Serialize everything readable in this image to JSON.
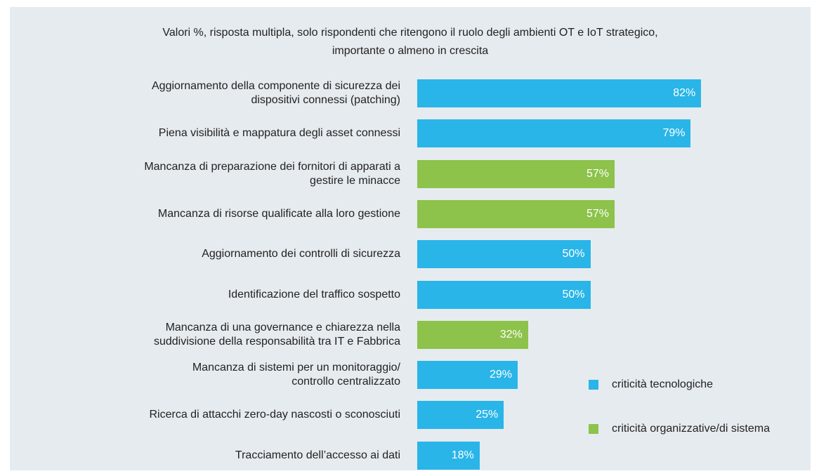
{
  "chart_data": {
    "type": "bar",
    "orientation": "horizontal",
    "title": "Valori %, risposta multipla, solo rispondenti che ritengono il ruolo degli ambienti OT e IoT strategico,\nimportante o almeno in crescita",
    "categories": [
      "Aggiornamento della componente di sicurezza dei\ndispositivi connessi (patching)",
      "Piena visibilità e mappatura degli asset connessi",
      "Mancanza di preparazione dei fornitori di apparati a\ngestire le minacce",
      "Mancanza di risorse qualificate alla loro gestione",
      "Aggiornamento dei controlli di sicurezza",
      "Identificazione del traffico sospetto",
      "Mancanza di una governance e chiarezza nella\nsuddivisione della responsabilità tra IT e Fabbrica",
      "Mancanza di sistemi per un monitoraggio/\ncontrollo centralizzato",
      "Ricerca di attacchi zero-day nascosti o sconosciuti",
      "Tracciamento dell’accesso ai dati"
    ],
    "series": [
      {
        "name": "criticità tecnologiche",
        "color": "#29b5e8",
        "values": [
          82,
          79,
          null,
          null,
          50,
          50,
          null,
          29,
          25,
          18
        ],
        "value_labels": [
          "82%",
          "79%",
          null,
          null,
          "50%",
          "50%",
          null,
          "29%",
          "25%",
          "18%"
        ]
      },
      {
        "name": "criticità organizzative/di sistema",
        "color": "#8dc24b",
        "values": [
          null,
          null,
          57,
          57,
          null,
          null,
          32,
          null,
          null,
          null
        ],
        "value_labels": [
          null,
          null,
          "57%",
          "57%",
          null,
          null,
          "32%",
          null,
          null,
          null
        ]
      }
    ],
    "xlim": [
      0,
      100
    ]
  }
}
